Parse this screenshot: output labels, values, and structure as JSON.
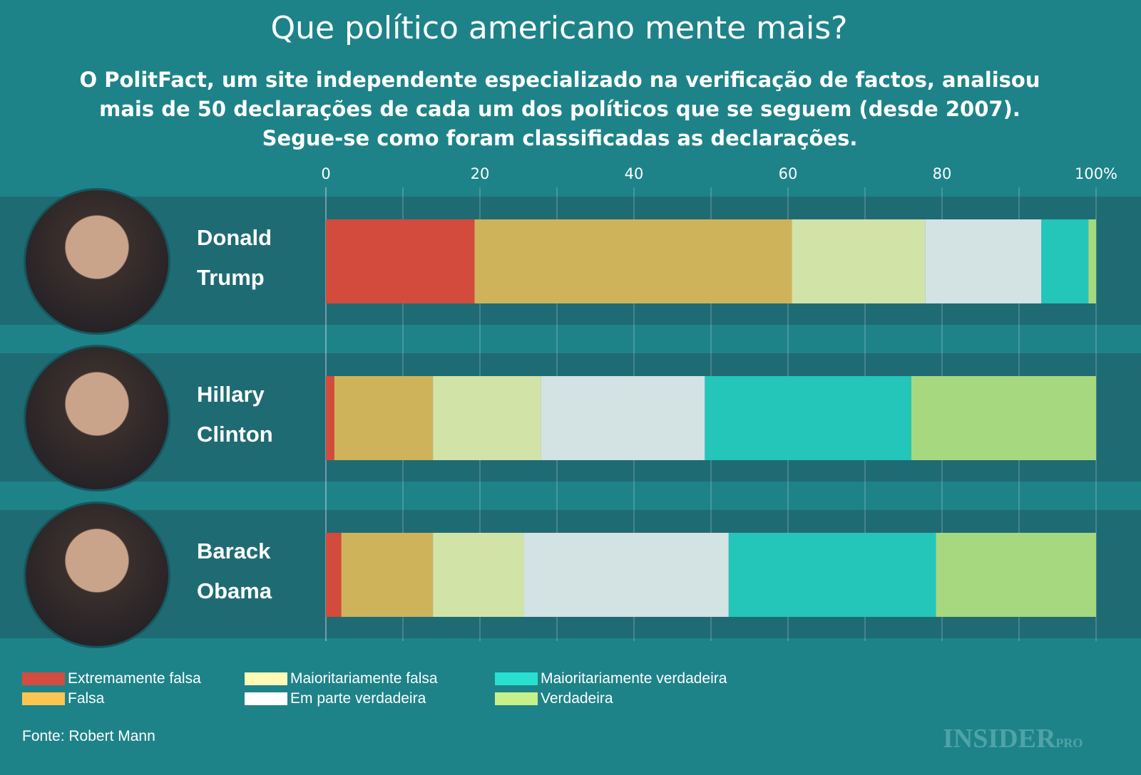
{
  "chart_data": {
    "type": "stacked-bar-horizontal",
    "title": "Que político americano mente mais?",
    "subtitle": "O PolitFact, um site independente especializado na verificação de factos, analisou mais de 50 declarações de cada um dos políticos que se seguem (desde 2007). Segue-se como foram classificadas as declarações.",
    "xlim": [
      0,
      100
    ],
    "xticks": [
      "0",
      "20",
      "40",
      "60",
      "80",
      "100%"
    ],
    "grid": true,
    "categories": [
      "Donald Trump",
      "Hillary Clinton",
      "Barack Obama"
    ],
    "category_lines": [
      [
        "Donald",
        "Trump"
      ],
      [
        "Hillary",
        "Clinton"
      ],
      [
        "Barack",
        "Obama"
      ]
    ],
    "series": [
      {
        "name": "Extremamente falsa",
        "color": "#d44d40",
        "bar_color": "#d24b3c",
        "values": [
          19.3,
          1.1,
          2.0
        ]
      },
      {
        "name": "Falsa",
        "color": "#fcc552",
        "bar_color": "#cfb35a",
        "values": [
          41.2,
          12.8,
          11.9
        ]
      },
      {
        "name": "Maioritariamente falsa",
        "color": "#fffbb5",
        "bar_color": "#d2e3a8",
        "values": [
          17.3,
          14.0,
          11.8
        ]
      },
      {
        "name": "Em parte verdadeira",
        "color": "#ffffff",
        "bar_color": "#d3e2e3",
        "values": [
          15.1,
          21.3,
          26.6
        ]
      },
      {
        "name": "Maioritariamente verdadeira",
        "color": "#27e0d0",
        "bar_color": "#23c6b8",
        "values": [
          6.1,
          26.8,
          26.9
        ]
      },
      {
        "name": "Verdadeira",
        "color": "#c6f08a",
        "bar_color": "#a6d880",
        "values": [
          1.0,
          24.0,
          20.8
        ]
      }
    ],
    "legend_position": "bottom-left"
  },
  "source": "Fonte: Robert Mann",
  "logo": {
    "main": "INSIDER",
    "suffix": "PRO"
  }
}
